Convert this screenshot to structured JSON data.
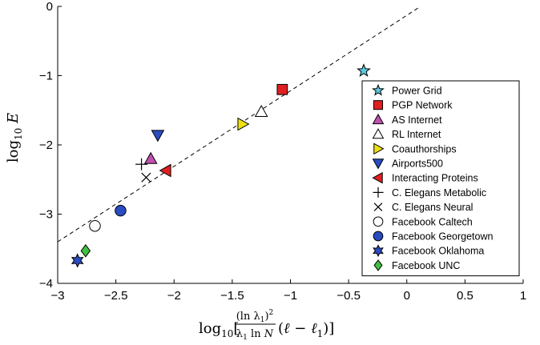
{
  "chart_data": {
    "type": "scatter",
    "xlabel": "log₁₀[((ln λ₁)² / (λ₁ ln N)) (ℓ − ℓ₁)]",
    "ylabel": "log₁₀ E",
    "xlim": [
      -3,
      1
    ],
    "ylim": [
      -4,
      0
    ],
    "x_ticks": [
      -3,
      -2.5,
      -2,
      -1.5,
      -1,
      -0.5,
      0,
      0.5,
      1
    ],
    "x_tick_labels": [
      "−3",
      "−2.5",
      "−2",
      "−1.5",
      "−1",
      "−0.5",
      "0",
      "0.5",
      "1"
    ],
    "y_ticks": [
      0,
      -1,
      -2,
      -3,
      -4
    ],
    "y_tick_labels": [
      "0",
      "−1",
      "−2",
      "−3",
      "−4"
    ],
    "grid": false,
    "legend_position": "right",
    "fit_line": {
      "style": "dashed",
      "x": [
        -3,
        0.1
      ],
      "y": [
        -3.4,
        -0.02
      ]
    },
    "series": [
      {
        "name": "Power Grid",
        "marker": "star5",
        "color": "#5bc8e0",
        "x": [
          -0.37
        ],
        "y": [
          -0.93
        ]
      },
      {
        "name": "PGP Network",
        "marker": "square",
        "color": "#e02020",
        "x": [
          -1.07
        ],
        "y": [
          -1.2
        ]
      },
      {
        "name": "AS Internet",
        "marker": "triangle-up",
        "color": "#c050b0",
        "x": [
          -2.2
        ],
        "y": [
          -2.2
        ]
      },
      {
        "name": "RL Internet",
        "marker": "triangle-up",
        "color": "#ffffff",
        "x": [
          -1.25
        ],
        "y": [
          -1.52
        ]
      },
      {
        "name": "Coauthorships",
        "marker": "triangle-right",
        "color": "#f0e010",
        "x": [
          -1.41
        ],
        "y": [
          -1.7
        ]
      },
      {
        "name": "Airports500",
        "marker": "triangle-down",
        "color": "#2a4cc0",
        "x": [
          -2.14
        ],
        "y": [
          -1.86
        ]
      },
      {
        "name": "Interacting Proteins",
        "marker": "triangle-left",
        "color": "#e02020",
        "x": [
          -2.07
        ],
        "y": [
          -2.37
        ]
      },
      {
        "name": "C. Elegans Metabolic",
        "marker": "plus",
        "color": "#000000",
        "x": [
          -2.28
        ],
        "y": [
          -2.28
        ]
      },
      {
        "name": "C. Elegans Neural",
        "marker": "cross",
        "color": "#000000",
        "x": [
          -2.24
        ],
        "y": [
          -2.47
        ]
      },
      {
        "name": "Facebook Caltech",
        "marker": "circle",
        "color": "#ffffff",
        "x": [
          -2.68
        ],
        "y": [
          -3.17
        ]
      },
      {
        "name": "Facebook Georgetown",
        "marker": "circle",
        "color": "#2a4cc0",
        "x": [
          -2.46
        ],
        "y": [
          -2.95
        ]
      },
      {
        "name": "Facebook Oklahoma",
        "marker": "hexagram",
        "color": "#2a4cc0",
        "x": [
          -2.83
        ],
        "y": [
          -3.67
        ]
      },
      {
        "name": "Facebook UNC",
        "marker": "diamond",
        "color": "#40c040",
        "x": [
          -2.76
        ],
        "y": [
          -3.53
        ]
      }
    ]
  }
}
